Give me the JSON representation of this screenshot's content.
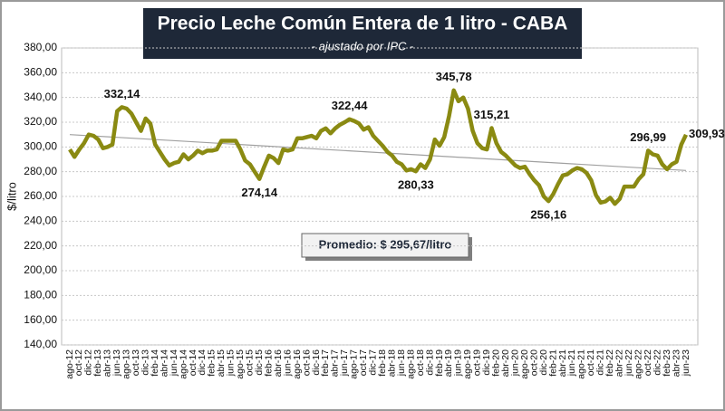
{
  "chart_data": {
    "type": "line",
    "title": "Precio Leche Común Entera de 1 litro - CABA",
    "subtitle": "- ajustado por IPC -",
    "y_label": "$/litro",
    "annotation": "Promedio: $ 295,67/litro",
    "categories": [
      "ago-12",
      null,
      "oct-12",
      null,
      "dic-12",
      null,
      "feb-13",
      null,
      "abr-13",
      null,
      "jun-13",
      null,
      "ago-13",
      null,
      "oct-13",
      null,
      "dic-13",
      null,
      "feb-14",
      null,
      "abr-14",
      null,
      "jun-14",
      null,
      "ago-14",
      null,
      "oct-14",
      null,
      "dic-14",
      null,
      "feb-15",
      null,
      "abr-15",
      null,
      "jun-15",
      null,
      "ago-15",
      null,
      "oct-15",
      null,
      "dic-15",
      null,
      "feb-16",
      null,
      "abr-16",
      null,
      "jun-16",
      null,
      "ago-16",
      null,
      "oct-16",
      null,
      "dic-16",
      null,
      "feb-17",
      null,
      "abr-17",
      null,
      "jun-17",
      null,
      "ago-17",
      null,
      "oct-17",
      null,
      "dic-17",
      null,
      "feb-18",
      null,
      "abr-18",
      null,
      "jun-18",
      null,
      "ago-18",
      null,
      "oct-18",
      null,
      "dic-18",
      null,
      "feb-19",
      null,
      "abr-19",
      null,
      "jun-19",
      null,
      "ago-19",
      null,
      "oct-19",
      null,
      "dic-19",
      null,
      "feb-20",
      null,
      "abr-20",
      null,
      "jun-20",
      null,
      "ago-20",
      null,
      "oct-20",
      null,
      "dic-20",
      null,
      "feb-21",
      null,
      "abr-21",
      null,
      "jun-21",
      null,
      "ago-21",
      null,
      "oct-21",
      null,
      "dic-21",
      null,
      "feb-22",
      null,
      "abr-22",
      null,
      "jun-22",
      null,
      "ago-22",
      null,
      "oct-22",
      null,
      "dic-22",
      null,
      "feb-23",
      null,
      "abr-23",
      null,
      "jun-23"
    ],
    "values": [
      298,
      292,
      298,
      303,
      310,
      309,
      306,
      299,
      300,
      302,
      329,
      332.14,
      331,
      327,
      320,
      313,
      323,
      319,
      302,
      296,
      290,
      285,
      287,
      288,
      294,
      290,
      293,
      297,
      295,
      297,
      297,
      298,
      305,
      305,
      305,
      305,
      298,
      289,
      286,
      280,
      274.14,
      284,
      293,
      291,
      287,
      298,
      297,
      298,
      307,
      307,
      308,
      309,
      307,
      313,
      315,
      311,
      315,
      318,
      320,
      322.44,
      321,
      319,
      314,
      316,
      309,
      305,
      301,
      296,
      293,
      288,
      286,
      281,
      282,
      280.33,
      286,
      283,
      290,
      306,
      301,
      308,
      325,
      345.78,
      337,
      340,
      331,
      313,
      303,
      299,
      298,
      315.21,
      303,
      296,
      293,
      289,
      285,
      283,
      284,
      278,
      273,
      269,
      260,
      256.16,
      262,
      270,
      277,
      278,
      281,
      283,
      282,
      279,
      273,
      261,
      255,
      256,
      259,
      254,
      258,
      268,
      268,
      268,
      274,
      278,
      296.99,
      294,
      293,
      286,
      282,
      286,
      288,
      302,
      309.93
    ],
    "value_labels": [
      null,
      null,
      null,
      null,
      null,
      null,
      null,
      null,
      null,
      null,
      null,
      "332,14",
      null,
      null,
      null,
      null,
      null,
      null,
      null,
      null,
      null,
      null,
      null,
      null,
      null,
      null,
      null,
      null,
      null,
      null,
      null,
      null,
      null,
      null,
      null,
      null,
      null,
      null,
      null,
      null,
      "274,14",
      null,
      null,
      null,
      null,
      null,
      null,
      null,
      null,
      null,
      null,
      null,
      null,
      null,
      null,
      null,
      null,
      null,
      null,
      "322,44",
      null,
      null,
      null,
      null,
      null,
      null,
      null,
      null,
      null,
      null,
      null,
      null,
      null,
      "280,33",
      null,
      null,
      null,
      null,
      null,
      null,
      null,
      "345,78",
      null,
      null,
      null,
      null,
      null,
      null,
      null,
      "315,21",
      null,
      null,
      null,
      null,
      null,
      null,
      null,
      null,
      null,
      null,
      null,
      "256,16",
      null,
      null,
      null,
      null,
      null,
      null,
      null,
      null,
      null,
      null,
      null,
      null,
      null,
      null,
      null,
      null,
      null,
      null,
      null,
      null,
      "296,99",
      null,
      null,
      null,
      null,
      null,
      null,
      null,
      "309,93"
    ],
    "color": "#8a8a12",
    "trendline": [
      310,
      281
    ],
    "trend_color": "#a0a0a0",
    "ylim": [
      140,
      380
    ],
    "yticks": [
      {
        "value": 140,
        "label": "140,00"
      },
      {
        "value": 160,
        "label": "160,00"
      },
      {
        "value": 180,
        "label": "180,00"
      },
      {
        "value": 200,
        "label": "200,00"
      },
      {
        "value": 220,
        "label": "220,00"
      },
      {
        "value": 240,
        "label": "240,00"
      },
      {
        "value": 260,
        "label": "260,00"
      },
      {
        "value": 280,
        "label": "280,00"
      },
      {
        "value": 300,
        "label": "300,00"
      },
      {
        "value": 320,
        "label": "320,00"
      },
      {
        "value": 340,
        "label": "340,00"
      },
      {
        "value": 360,
        "label": "360,00"
      },
      {
        "value": 380,
        "label": "380,00"
      }
    ],
    "grid": true
  }
}
